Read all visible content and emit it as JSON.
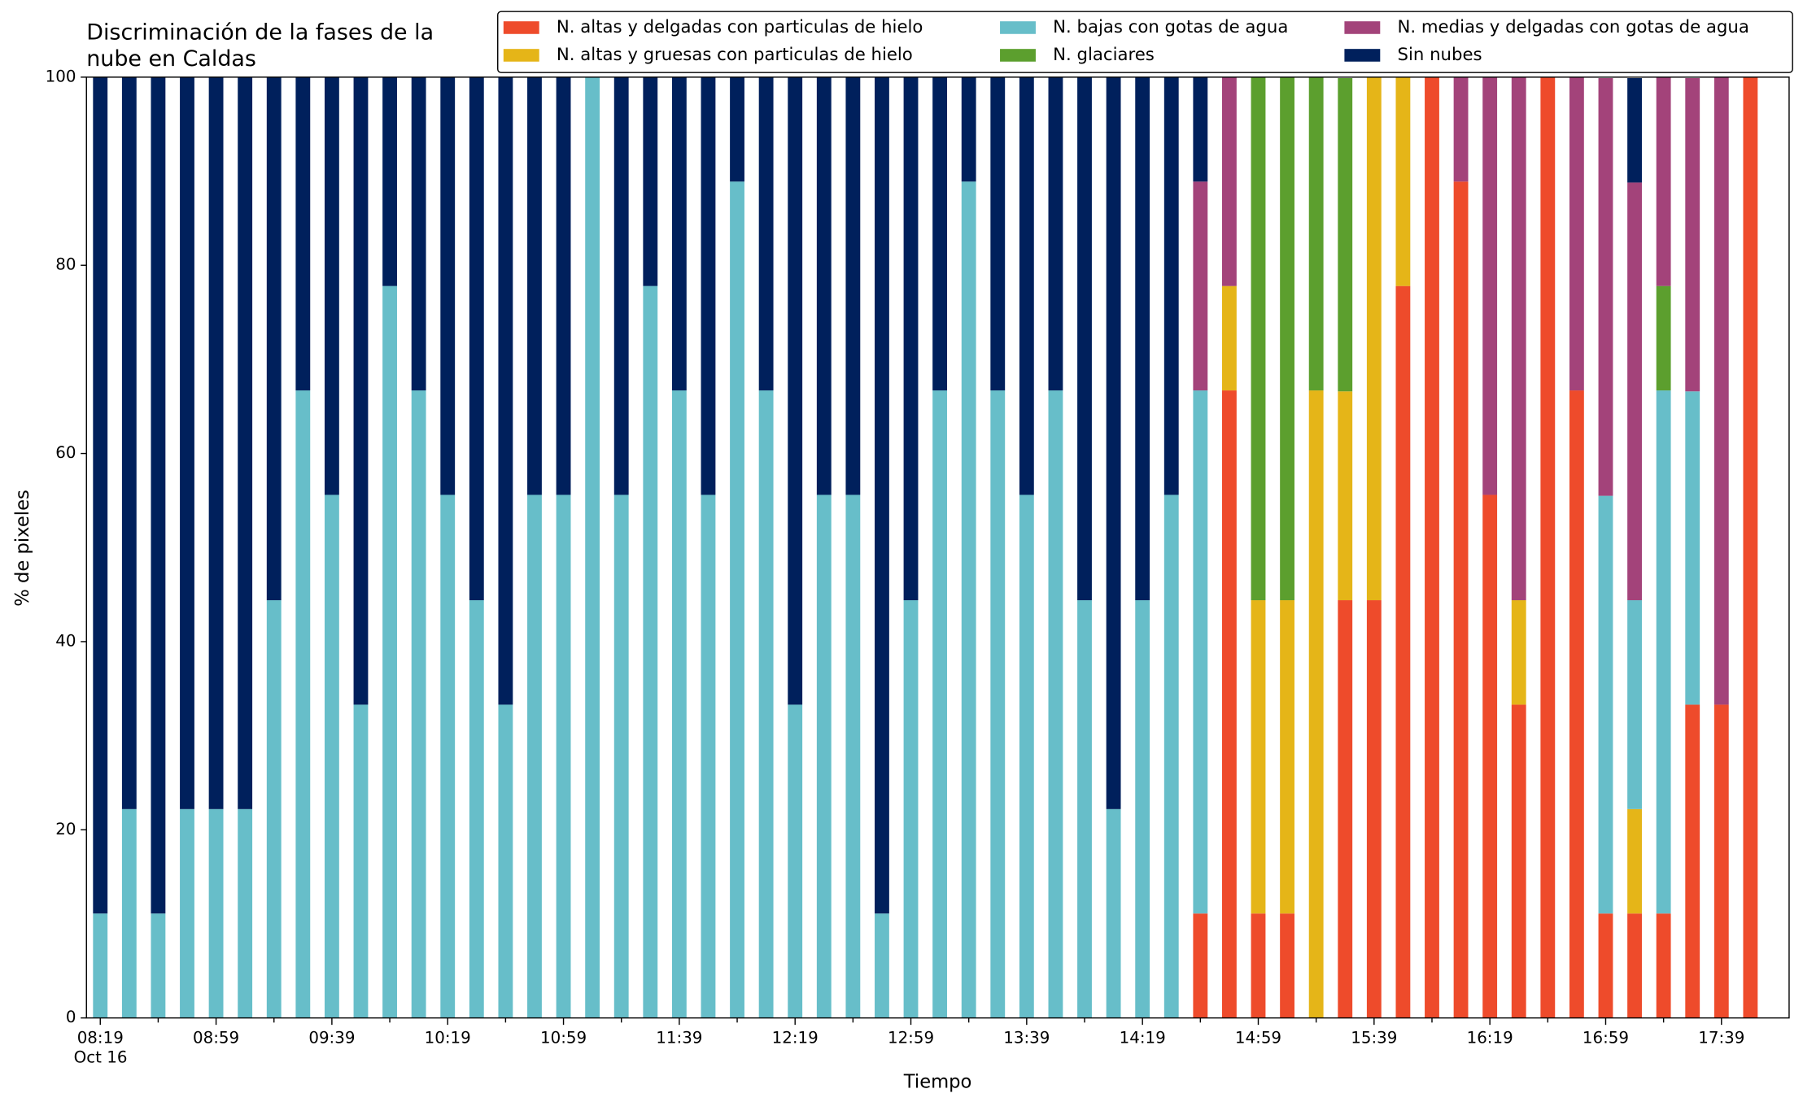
{
  "chart_data": {
    "type": "stacked_bar",
    "title": [
      "Discriminación de la fases de la",
      "nube en Caldas"
    ],
    "x_label": "Tiempo",
    "y_label": "% de pixeles",
    "x_date_label": "Oct 16",
    "categories": [
      "08:19",
      null,
      null,
      null,
      "08:59",
      null,
      null,
      null,
      "09:39",
      null,
      null,
      null,
      "10:19",
      null,
      null,
      null,
      "10:59",
      null,
      null,
      null,
      "11:39",
      null,
      null,
      null,
      "12:19",
      null,
      null,
      null,
      "12:59",
      null,
      null,
      null,
      "13:39",
      null,
      null,
      null,
      "14:19",
      null,
      null,
      null,
      "14:59",
      null,
      null,
      null,
      "15:39",
      null,
      null,
      null,
      "16:19",
      null,
      null,
      null,
      "16:59",
      null,
      null,
      null,
      "17:39",
      null
    ],
    "series": [
      {
        "name": "N. altas y delgadas con particulas de hielo",
        "color": "#ee4b2b",
        "values": [
          0,
          0,
          0,
          0,
          0,
          0,
          0,
          0,
          0,
          0,
          0,
          0,
          0,
          0,
          0,
          0,
          0,
          0,
          0,
          0,
          0,
          0,
          0,
          0,
          0,
          0,
          0,
          0,
          0,
          0,
          0,
          0,
          0,
          0,
          0,
          0,
          0,
          0,
          11.1,
          66.7,
          11.1,
          11.1,
          0,
          44.4,
          44.4,
          77.8,
          100,
          88.9,
          55.6,
          33.3,
          100,
          66.7,
          11.1,
          11.1,
          11.1,
          33.3,
          33.3,
          100
        ]
      },
      {
        "name": "N. altas y gruesas con particulas de hielo",
        "color": "#e5b518",
        "values": [
          0,
          0,
          0,
          0,
          0,
          0,
          0,
          0,
          0,
          0,
          0,
          0,
          0,
          0,
          0,
          0,
          0,
          0,
          0,
          0,
          0,
          0,
          0,
          0,
          0,
          0,
          0,
          0,
          0,
          0,
          0,
          0,
          0,
          0,
          0,
          0,
          0,
          0,
          0,
          11.1,
          33.3,
          33.3,
          66.7,
          22.2,
          55.6,
          22.2,
          0,
          0,
          0,
          11.1,
          0,
          0,
          0,
          11.1,
          0,
          0,
          0,
          0
        ]
      },
      {
        "name": "N. bajas con gotas de agua",
        "color": "#67bec9",
        "values": [
          11.1,
          22.2,
          11.1,
          22.2,
          22.2,
          22.2,
          44.4,
          66.7,
          55.6,
          33.3,
          77.8,
          66.7,
          55.6,
          44.4,
          33.3,
          55.6,
          55.6,
          100,
          55.6,
          77.8,
          66.7,
          55.6,
          88.9,
          66.7,
          33.3,
          55.6,
          55.6,
          11.1,
          44.4,
          66.7,
          88.9,
          66.7,
          55.6,
          66.7,
          44.4,
          22.2,
          44.4,
          55.6,
          55.6,
          0,
          0,
          0,
          0,
          0,
          0,
          0,
          0,
          0,
          0,
          0,
          0,
          0,
          44.4,
          22.2,
          55.6,
          33.3,
          0,
          0
        ]
      },
      {
        "name": "N. glaciares",
        "color": "#5c9f2e",
        "values": [
          0,
          0,
          0,
          0,
          0,
          0,
          0,
          0,
          0,
          0,
          0,
          0,
          0,
          0,
          0,
          0,
          0,
          0,
          0,
          0,
          0,
          0,
          0,
          0,
          0,
          0,
          0,
          0,
          0,
          0,
          0,
          0,
          0,
          0,
          0,
          0,
          0,
          0,
          0,
          0,
          55.6,
          55.6,
          33.3,
          33.3,
          0,
          0,
          0,
          0,
          0,
          0,
          0,
          0,
          0,
          0,
          11.1,
          0,
          0,
          0
        ]
      },
      {
        "name": "N. medias y delgadas con gotas de agua",
        "color": "#a3437a",
        "values": [
          0,
          0,
          0,
          0,
          0,
          0,
          0,
          0,
          0,
          0,
          0,
          0,
          0,
          0,
          0,
          0,
          0,
          0,
          0,
          0,
          0,
          0,
          0,
          0,
          0,
          0,
          0,
          0,
          0,
          0,
          0,
          0,
          0,
          0,
          0,
          0,
          0,
          0,
          22.2,
          22.2,
          0,
          0,
          0,
          0,
          0,
          0,
          0,
          11.1,
          44.4,
          55.6,
          0,
          33.3,
          44.4,
          44.4,
          22.2,
          33.3,
          66.7,
          0
        ]
      },
      {
        "name": "Sin nubes",
        "color": "#00205c",
        "values": [
          88.9,
          77.8,
          88.9,
          77.8,
          77.8,
          77.8,
          55.6,
          33.3,
          44.4,
          66.7,
          22.2,
          33.3,
          44.4,
          55.6,
          66.7,
          44.4,
          44.4,
          0,
          44.4,
          22.2,
          33.3,
          44.4,
          11.1,
          33.3,
          66.7,
          44.4,
          44.4,
          88.9,
          55.6,
          33.3,
          11.1,
          33.3,
          44.4,
          33.3,
          55.6,
          77.8,
          55.6,
          44.4,
          11.1,
          0,
          0,
          0,
          0,
          0,
          0,
          0,
          0,
          0,
          0,
          0,
          0,
          0,
          0,
          11.1,
          0,
          0,
          0,
          0
        ]
      }
    ],
    "ylim": [
      0,
      100
    ],
    "yticks": [
      0,
      20,
      40,
      60,
      80,
      100
    ],
    "grid": false,
    "legend": "top right"
  }
}
